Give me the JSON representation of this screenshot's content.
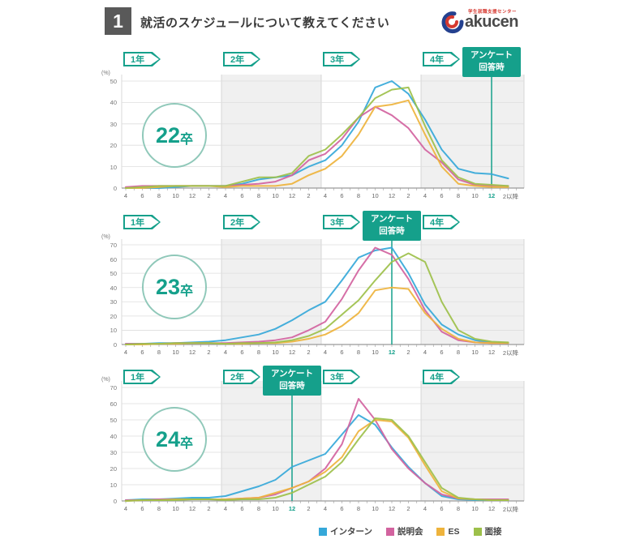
{
  "header": {
    "number": "1",
    "title": "就活のスケジュールについて教えてください"
  },
  "logo": {
    "brand": "akucen",
    "brand_initial": "G",
    "tagline": "学生就職支援センター"
  },
  "colors": {
    "accent": "#15a08b",
    "intern": "#35a8d9",
    "briefing": "#d2639f",
    "es": "#eeb33c",
    "interview": "#9dc04a",
    "band": "#f0f0f0",
    "grid": "#dedede",
    "axis": "#9a9a9a"
  },
  "legend": [
    {
      "label": "インターン",
      "key": "intern"
    },
    {
      "label": "説明会",
      "key": "briefing"
    },
    {
      "label": "ES",
      "key": "es"
    },
    {
      "label": "面接",
      "key": "interview"
    }
  ],
  "survey_badge": {
    "line1": "アンケート",
    "line2": "回答時"
  },
  "year_labels": [
    "1年",
    "2年",
    "3年",
    "4年"
  ],
  "unit_label": "(%)",
  "x_tick_labels": [
    "4",
    "6",
    "8",
    "10",
    "12",
    "2",
    "4",
    "6",
    "8",
    "10",
    "12",
    "2",
    "4",
    "6",
    "8",
    "10",
    "12",
    "2",
    "4",
    "6",
    "8",
    "10",
    "12",
    "2以降"
  ],
  "chart_data": [
    {
      "type": "line",
      "title": "22卒",
      "x_note": "months Apr year1 - Feb-and-later year4, every 2 months",
      "ylim": [
        0,
        50
      ],
      "yticks": [
        0,
        10,
        20,
        30,
        40,
        50
      ],
      "survey_tick_index": 22,
      "series": [
        {
          "name": "インターン",
          "key": "intern",
          "values": [
            0,
            0,
            0,
            0.5,
            1,
            1,
            1,
            2,
            4,
            5,
            6,
            10,
            13,
            20,
            31,
            47,
            50,
            44,
            32,
            18,
            9,
            7,
            6.5,
            4.5
          ]
        },
        {
          "name": "説明会",
          "key": "briefing",
          "values": [
            0.5,
            1,
            1,
            1,
            1,
            1,
            1,
            1.5,
            2,
            3,
            6,
            13,
            16,
            23,
            33,
            38,
            34,
            28,
            18,
            12,
            4,
            1.5,
            1,
            1
          ]
        },
        {
          "name": "ES",
          "key": "es",
          "values": [
            0,
            0,
            0.5,
            1,
            1,
            1,
            0.5,
            1,
            1,
            1,
            2,
            6,
            9,
            15,
            25,
            38,
            39,
            41,
            25,
            10,
            2,
            1,
            0.5,
            0.5
          ]
        },
        {
          "name": "面接",
          "key": "interview",
          "values": [
            0,
            0.5,
            1,
            1,
            1,
            1,
            1,
            3,
            5,
            5,
            7,
            15,
            18,
            25,
            33,
            42,
            46,
            47,
            29,
            13,
            5,
            2,
            1.5,
            1
          ]
        }
      ]
    },
    {
      "type": "line",
      "title": "23卒",
      "x_note": "months Apr year1 - Feb-and-later year4, every 2 months",
      "ylim": [
        0,
        70
      ],
      "yticks": [
        0,
        10,
        20,
        30,
        40,
        50,
        60,
        70
      ],
      "survey_tick_index": 16,
      "series": [
        {
          "name": "インターン",
          "key": "intern",
          "values": [
            0.5,
            0.5,
            1,
            1,
            1.5,
            2,
            3,
            5,
            7,
            11,
            17,
            24,
            30,
            45,
            61,
            66,
            68,
            50,
            28,
            14,
            7,
            3,
            1.5,
            1
          ]
        },
        {
          "name": "説明会",
          "key": "briefing",
          "values": [
            0.5,
            0.5,
            0.5,
            1,
            1,
            1,
            1,
            1.5,
            2,
            3,
            5,
            10,
            16,
            32,
            52,
            68,
            63,
            46,
            24,
            9,
            3,
            1.5,
            1,
            1
          ]
        },
        {
          "name": "ES",
          "key": "es",
          "values": [
            0,
            0,
            0.5,
            0.5,
            1,
            1,
            0.5,
            0.5,
            1,
            1,
            2,
            4,
            7,
            13,
            22,
            38,
            40,
            39,
            22,
            11,
            4,
            1.5,
            1,
            1
          ]
        },
        {
          "name": "面接",
          "key": "interview",
          "values": [
            0,
            0.5,
            0.5,
            1,
            1,
            1,
            0.5,
            1,
            1,
            1.5,
            3,
            6,
            11,
            21,
            31,
            45,
            58,
            64,
            58,
            30,
            10,
            4,
            2,
            1.5
          ]
        }
      ]
    },
    {
      "type": "line",
      "title": "24卒",
      "x_note": "months Apr year1 - Feb-and-later year4, every 2 months",
      "ylim": [
        0,
        70
      ],
      "yticks": [
        0,
        10,
        20,
        30,
        40,
        50,
        60,
        70
      ],
      "survey_tick_index": 10,
      "series": [
        {
          "name": "インターン",
          "key": "intern",
          "values": [
            0.5,
            1,
            1,
            1.5,
            2,
            2,
            3,
            6,
            9,
            13,
            21,
            25,
            29,
            41,
            53,
            47,
            33,
            21,
            11,
            3,
            1,
            0.5,
            0.5,
            0.5
          ]
        },
        {
          "name": "説明会",
          "key": "briefing",
          "values": [
            0.5,
            0.5,
            1,
            1,
            1,
            1,
            1,
            1.5,
            2,
            4,
            8,
            12,
            20,
            35,
            63,
            50,
            32,
            20,
            11,
            4,
            1.5,
            1,
            1,
            1
          ]
        },
        {
          "name": "ES",
          "key": "es",
          "values": [
            0,
            0.5,
            0.5,
            1,
            1,
            1,
            1,
            1.5,
            2,
            5,
            8,
            12,
            18,
            27,
            43,
            50,
            49,
            39,
            22,
            6,
            1.5,
            1,
            0.5,
            0.5
          ]
        },
        {
          "name": "面接",
          "key": "interview",
          "values": [
            0,
            0.5,
            0.5,
            0.5,
            1,
            1,
            0.5,
            1,
            1,
            2,
            5,
            10,
            15,
            24,
            38,
            51,
            50,
            40,
            24,
            8,
            2,
            1,
            0.5,
            0.5
          ]
        }
      ]
    }
  ]
}
